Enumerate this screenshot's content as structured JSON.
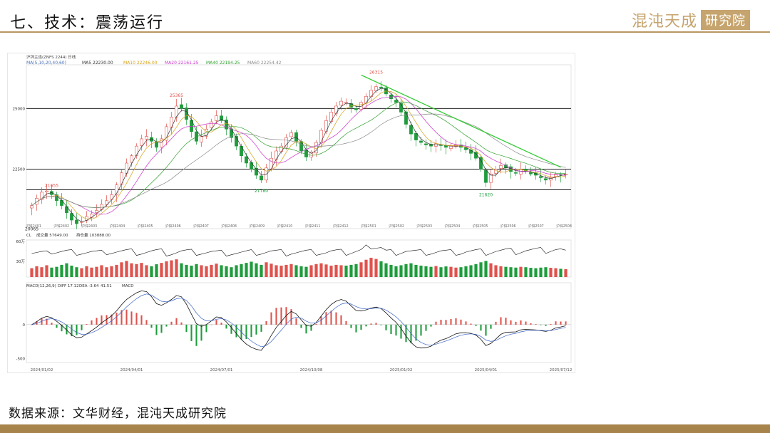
{
  "slide": {
    "title": "七、技术：震荡运行",
    "brand_text": "混沌天成",
    "brand_box": "研究院",
    "source": "数据来源：文华财经，混沌天成研究院"
  },
  "colors": {
    "up": "#e0524d",
    "down": "#1e9c3c",
    "ma5": "#333333",
    "ma10": "#d4a017",
    "ma20": "#cc33cc",
    "ma40": "#2e9e2e",
    "ma60": "#8a8a8a",
    "trendline": "#33cc33",
    "accent": "#c6a46e"
  },
  "chart_data": {
    "type": "candlestick",
    "header": "沪锌主连(ZNFS 2244)  日线",
    "ma_legend": {
      "label": "MA(5,10,20,40,60)",
      "items": [
        {
          "name": "MA5",
          "value": "22230.00"
        },
        {
          "name": "MA10",
          "value": "22246.00"
        },
        {
          "name": "MA20",
          "value": "22161.25"
        },
        {
          "name": "MA40",
          "value": "22194.25"
        },
        {
          "name": "MA60",
          "value": "22254.42"
        }
      ]
    },
    "ylim": [
      20050,
      26800
    ],
    "yticks": [
      22500,
      25000
    ],
    "hlines": [
      25000,
      22500,
      21650
    ],
    "annotations": [
      {
        "text": "21655",
        "index": 4,
        "price": 21655,
        "pos": "above"
      },
      {
        "text": "25365",
        "index": 29,
        "price": 25365,
        "pos": "above"
      },
      {
        "text": "21780",
        "index": 46,
        "price": 21780,
        "pos": "below"
      },
      {
        "text": "26315",
        "index": 69,
        "price": 26315,
        "pos": "above"
      },
      {
        "text": "21620",
        "index": 91,
        "price": 21620,
        "pos": "below"
      },
      {
        "text": "20065",
        "index": 0,
        "price": 20065,
        "pos": "label"
      }
    ],
    "trendline": [
      {
        "index": 66,
        "price": 26380
      },
      {
        "index": 106,
        "price": 22580
      }
    ],
    "contract_labels": [
      "沪锌2401",
      "沪锌2402",
      "沪锌2403",
      "沪锌2404",
      "沪锌2405",
      "沪锌2406",
      "沪锌2407",
      "沪锌2408",
      "沪锌2409",
      "沪锌2410",
      "沪锌2411",
      "沪锌2412",
      "沪锌2501",
      "沪锌2502",
      "沪锌2503",
      "沪锌2504",
      "沪锌2505",
      "沪锌2506",
      "沪锌2507",
      "沪锌2508"
    ],
    "close": [
      21000,
      21300,
      21550,
      21600,
      21450,
      21200,
      21000,
      20700,
      20400,
      20250,
      20350,
      20550,
      20650,
      20800,
      21050,
      21200,
      21450,
      21850,
      22350,
      22750,
      23050,
      23450,
      23750,
      23850,
      23650,
      23400,
      23750,
      24250,
      24650,
      25100,
      25000,
      24550,
      24050,
      23650,
      23850,
      24150,
      24450,
      24700,
      24500,
      24150,
      23800,
      23450,
      23050,
      22750,
      22500,
      22250,
      22050,
      22550,
      22950,
      23250,
      23450,
      23800,
      24000,
      23650,
      23250,
      23000,
      23200,
      23600,
      24100,
      24500,
      24850,
      25100,
      25300,
      25250,
      25050,
      24950,
      25250,
      25500,
      25750,
      25900,
      25850,
      25600,
      25400,
      25250,
      24850,
      24350,
      23950,
      23700,
      23600,
      23500,
      23450,
      23550,
      23500,
      23400,
      23450,
      23500,
      23400,
      23300,
      23150,
      22950,
      22500,
      21950,
      22300,
      22500,
      22650,
      22550,
      22400,
      22350,
      22500,
      22400,
      22300,
      22250,
      22150,
      22050,
      22150,
      22300,
      22250,
      22300
    ],
    "volume_panel": {
      "title": "CL",
      "items": [
        {
          "name": "成交量",
          "value": "57649.00"
        },
        {
          "name": "持仓量",
          "value": "103888.00"
        }
      ],
      "yticks": [
        "60万",
        "30万"
      ]
    },
    "volume_ratio": [
      0.45,
      0.55,
      0.5,
      0.6,
      0.48,
      0.52,
      0.62,
      0.7,
      0.58,
      0.5,
      0.45,
      0.55,
      0.48,
      0.52,
      0.6,
      0.5,
      0.55,
      0.62,
      0.75,
      0.82,
      0.7,
      0.66,
      0.72,
      0.6,
      0.55,
      0.65,
      0.72,
      0.8,
      0.85,
      0.9,
      0.7,
      0.62,
      0.58,
      0.66,
      0.6,
      0.55,
      0.62,
      0.68,
      0.6,
      0.55,
      0.5,
      0.6,
      0.66,
      0.72,
      0.78,
      0.7,
      0.62,
      0.75,
      0.68,
      0.6,
      0.58,
      0.62,
      0.66,
      0.6,
      0.55,
      0.52,
      0.6,
      0.66,
      0.7,
      0.64,
      0.58,
      0.62,
      0.6,
      0.58,
      0.62,
      0.66,
      0.75,
      0.88,
      0.98,
      0.92,
      0.8,
      0.7,
      0.62,
      0.55,
      0.6,
      0.66,
      0.7,
      0.62,
      0.58,
      0.55,
      0.52,
      0.56,
      0.5,
      0.54,
      0.52,
      0.48,
      0.5,
      0.55,
      0.6,
      0.66,
      0.75,
      0.82,
      0.7,
      0.6,
      0.55,
      0.52,
      0.5,
      0.48,
      0.52,
      0.5,
      0.47,
      0.45,
      0.48,
      0.5,
      0.47,
      0.45,
      0.42,
      0.4
    ],
    "oi_ratio": [
      0.72,
      0.75,
      0.78,
      0.8,
      0.7,
      0.74,
      0.78,
      0.82,
      0.84,
      0.66,
      0.7,
      0.74,
      0.78,
      0.8,
      0.82,
      0.68,
      0.72,
      0.76,
      0.8,
      0.84,
      0.86,
      0.66,
      0.7,
      0.75,
      0.8,
      0.84,
      0.86,
      0.64,
      0.68,
      0.74,
      0.8,
      0.83,
      0.85,
      0.66,
      0.7,
      0.74,
      0.78,
      0.8,
      0.82,
      0.64,
      0.68,
      0.72,
      0.76,
      0.8,
      0.84,
      0.66,
      0.7,
      0.75,
      0.8,
      0.82,
      0.84,
      0.64,
      0.7,
      0.74,
      0.78,
      0.82,
      0.84,
      0.66,
      0.7,
      0.74,
      0.8,
      0.83,
      0.85,
      0.66,
      0.72,
      0.78,
      0.84,
      0.98,
      0.86,
      0.88,
      0.9,
      0.82,
      0.84,
      0.66,
      0.72,
      0.78,
      0.8,
      0.82,
      0.84,
      0.66,
      0.7,
      0.75,
      0.8,
      0.82,
      0.84,
      0.66,
      0.7,
      0.76,
      0.8,
      0.84,
      0.86,
      0.66,
      0.72,
      0.78,
      0.82,
      0.86,
      0.88,
      0.68,
      0.74,
      0.8,
      0.84,
      0.88,
      0.9,
      0.72,
      0.78,
      0.84,
      0.86,
      0.82
    ],
    "macd_panel": {
      "label": "MACD(12,26,9)",
      "items": [
        {
          "name": "DIFF",
          "value": "17.12"
        },
        {
          "name": "DEA",
          "value": "-3.64"
        },
        {
          "name": "",
          "value": "41.51"
        },
        {
          "name": "MACD",
          "value": ""
        }
      ],
      "yticks": [
        {
          "text": "0",
          "value": 0
        },
        {
          "text": "-500",
          "value": -500
        }
      ],
      "ylim": [
        -560,
        620
      ]
    },
    "date_labels": [
      {
        "text": "2024/01/02",
        "index": 2
      },
      {
        "text": "2024/04/01",
        "index": 20
      },
      {
        "text": "2024/07/01",
        "index": 38
      },
      {
        "text": "2024/10/08",
        "index": 56
      },
      {
        "text": "2025/01/02",
        "index": 74
      },
      {
        "text": "2025/04/01",
        "index": 91
      },
      {
        "text": "2025/07/12",
        "index": 106
      }
    ]
  }
}
